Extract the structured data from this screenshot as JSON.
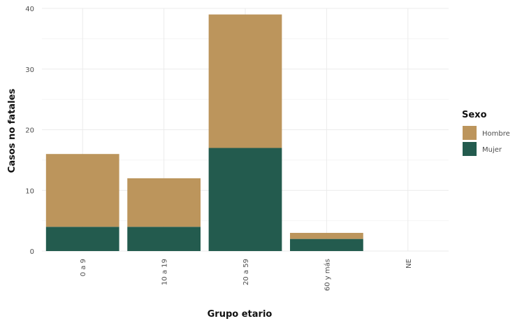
{
  "chart_data": {
    "type": "bar",
    "stacked": true,
    "categories": [
      "0 a 9",
      "10 a 19",
      "20 a 59",
      "60 y más",
      "NE"
    ],
    "series": [
      {
        "name": "Mujer",
        "color": "#235b4e",
        "values": [
          4,
          4,
          17,
          2,
          0
        ]
      },
      {
        "name": "Hombre",
        "color": "#bc955c",
        "values": [
          12,
          8,
          22,
          1,
          0
        ]
      }
    ],
    "xlabel": "Grupo etario",
    "ylabel": "Casos no fatales",
    "ylim": [
      0,
      40
    ],
    "yticks": [
      0,
      10,
      20,
      30,
      40
    ],
    "grid": true,
    "legend": {
      "title": "Sexo",
      "position": "right",
      "entries": [
        {
          "name": "Hombre",
          "color": "#bc955c"
        },
        {
          "name": "Mujer",
          "color": "#235b4e"
        }
      ]
    }
  }
}
